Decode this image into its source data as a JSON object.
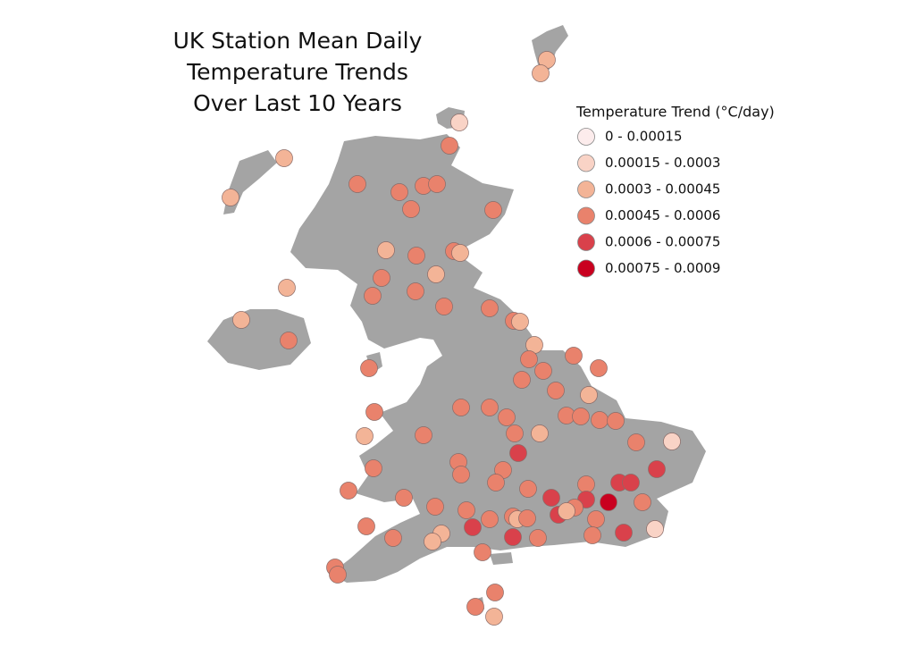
{
  "title": [
    "UK Station Mean Daily",
    "Temperature Trends",
    "Over Last 10 Years"
  ],
  "legend": {
    "title": "Temperature Trend (°C/day)",
    "classes": [
      {
        "label": "0 - 0.00015",
        "color": "#fcecec"
      },
      {
        "label": "0.00015 - 0.0003",
        "color": "#f9d3c6"
      },
      {
        "label": "0.0003 - 0.00045",
        "color": "#f3b497"
      },
      {
        "label": "0.00045 - 0.0006",
        "color": "#e9826c"
      },
      {
        "label": "0.0006 - 0.00075",
        "color": "#d9414b"
      },
      {
        "label": "0.00075 - 0.0009",
        "color": "#c9001f"
      }
    ]
  }
}
